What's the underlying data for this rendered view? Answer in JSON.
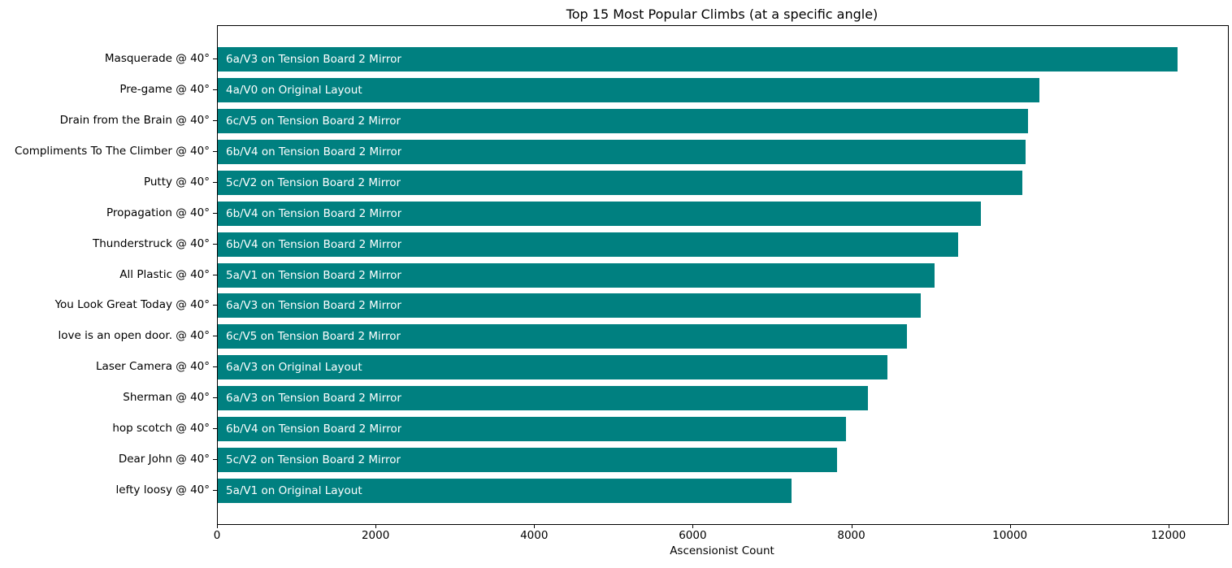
{
  "figure": {
    "title": "Top 15 Most Popular Climbs (at a specific angle)",
    "xlabel": "Ascensionist Count"
  },
  "chart_data": {
    "type": "bar",
    "orientation": "horizontal",
    "title": "Top 15 Most Popular Climbs (at a specific angle)",
    "xlabel": "Ascensionist Count",
    "ylabel": "",
    "xlim": [
      0,
      12740
    ],
    "x_ticks": [
      0,
      2000,
      4000,
      6000,
      8000,
      10000,
      12000
    ],
    "grid": false,
    "legend": false,
    "bar_color": "#008080",
    "bar_label_color": "#ffffff",
    "axis_color": "#000000",
    "categories": [
      "Masquerade @ 40°",
      "Pre-game @ 40°",
      "Drain from the Brain @ 40°",
      "Compliments To The Climber @ 40°",
      "Putty @ 40°",
      "Propagation @ 40°",
      "Thunderstruck @ 40°",
      "All Plastic @ 40°",
      "You Look Great Today @ 40°",
      "love is an open door. @ 40°",
      "Laser Camera @ 40°",
      "Sherman @ 40°",
      "hop scotch @ 40°",
      "Dear John @ 40°",
      "lefty loosy @ 40°"
    ],
    "values": [
      12100,
      10360,
      10220,
      10190,
      10150,
      9620,
      9340,
      9040,
      8870,
      8690,
      8450,
      8200,
      7920,
      7810,
      7240
    ],
    "bar_labels": [
      "6a/V3 on Tension Board 2 Mirror",
      "4a/V0 on Original Layout",
      "6c/V5 on Tension Board 2 Mirror",
      "6b/V4 on Tension Board 2 Mirror",
      "5c/V2 on Tension Board 2 Mirror",
      "6b/V4 on Tension Board 2 Mirror",
      "6b/V4 on Tension Board 2 Mirror",
      "5a/V1 on Tension Board 2 Mirror",
      "6a/V3 on Tension Board 2 Mirror",
      "6c/V5 on Tension Board 2 Mirror",
      "6a/V3 on Original Layout",
      "6a/V3 on Tension Board 2 Mirror",
      "6b/V4 on Tension Board 2 Mirror",
      "5c/V2 on Tension Board 2 Mirror",
      "5a/V1 on Original Layout"
    ]
  }
}
